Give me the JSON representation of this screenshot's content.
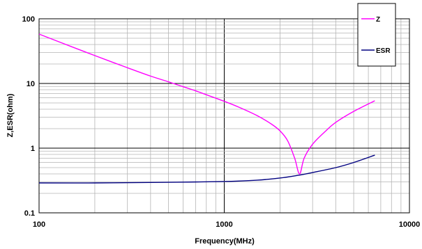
{
  "chart_data": {
    "type": "line",
    "title": "",
    "xlabel": "Frequency(MHz)",
    "ylabel": "Z,ESR(ohm)",
    "xscale": "log",
    "yscale": "log",
    "xlim": [
      100,
      10000
    ],
    "ylim": [
      0.1,
      100
    ],
    "x_ticks": [
      "100",
      "1000",
      "10000"
    ],
    "y_ticks": [
      "0.1",
      "1",
      "10",
      "100"
    ],
    "grid": true,
    "legend_position": "top-right",
    "series": [
      {
        "name": "Z",
        "color": "#ff00ff",
        "points": [
          [
            100,
            58
          ],
          [
            150,
            37
          ],
          [
            200,
            27
          ],
          [
            300,
            17.5
          ],
          [
            400,
            13
          ],
          [
            500,
            10.6
          ],
          [
            600,
            8.9
          ],
          [
            700,
            7.7
          ],
          [
            800,
            6.7
          ],
          [
            1000,
            5.3
          ],
          [
            1200,
            4.3
          ],
          [
            1500,
            3.2
          ],
          [
            1800,
            2.35
          ],
          [
            2000,
            1.85
          ],
          [
            2200,
            1.3
          ],
          [
            2400,
            0.7
          ],
          [
            2550,
            0.4
          ],
          [
            2700,
            0.7
          ],
          [
            3000,
            1.15
          ],
          [
            3500,
            1.8
          ],
          [
            4000,
            2.5
          ],
          [
            5000,
            3.7
          ],
          [
            6500,
            5.4
          ]
        ]
      },
      {
        "name": "ESR",
        "color": "#000080",
        "points": [
          [
            100,
            0.29
          ],
          [
            200,
            0.29
          ],
          [
            400,
            0.295
          ],
          [
            700,
            0.3
          ],
          [
            1000,
            0.305
          ],
          [
            1500,
            0.32
          ],
          [
            2000,
            0.345
          ],
          [
            2500,
            0.38
          ],
          [
            3000,
            0.42
          ],
          [
            4000,
            0.5
          ],
          [
            5000,
            0.6
          ],
          [
            6500,
            0.78
          ]
        ]
      }
    ]
  }
}
